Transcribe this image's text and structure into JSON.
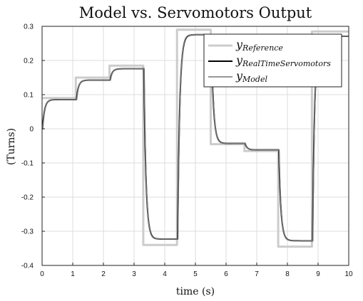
{
  "chart_data": {
    "type": "line",
    "title": "Model vs. Servomotors Output",
    "xlabel": "time (s)",
    "ylabel": "(Turns)",
    "xlim": [
      0,
      10
    ],
    "ylim": [
      -0.4,
      0.3
    ],
    "xticks": [
      0,
      1,
      2,
      3,
      4,
      5,
      6,
      7,
      8,
      9,
      10
    ],
    "yticks": [
      -0.4,
      -0.3,
      -0.2,
      -0.1,
      0,
      0.1,
      0.2,
      0.3
    ],
    "grid": true,
    "legend_position": "top-right",
    "series": [
      {
        "name": "y_Reference",
        "legend_main": "y",
        "legend_sub": "Reference",
        "color": "#cccccc",
        "kind": "step",
        "points": [
          [
            0,
            0.09
          ],
          [
            1.1,
            0.15
          ],
          [
            2.2,
            0.185
          ],
          [
            3.3,
            -0.34
          ],
          [
            4.4,
            0.29
          ],
          [
            5.5,
            -0.045
          ],
          [
            6.6,
            -0.065
          ],
          [
            7.7,
            -0.345
          ],
          [
            8.8,
            0.285
          ],
          [
            10,
            0.285
          ]
        ]
      },
      {
        "name": "y_RealTimeServomotors",
        "legend_main": "y",
        "legend_sub": "RealTimeServomotors",
        "color": "#000000",
        "kind": "response",
        "gain": 0.95,
        "tau": 0.07,
        "delay": 0.02,
        "steps": [
          [
            0,
            0.09
          ],
          [
            1.1,
            0.15
          ],
          [
            2.2,
            0.185
          ],
          [
            3.3,
            -0.34
          ],
          [
            4.4,
            0.29
          ],
          [
            5.5,
            -0.045
          ],
          [
            6.6,
            -0.065
          ],
          [
            7.7,
            -0.345
          ],
          [
            8.8,
            0.285
          ]
        ]
      },
      {
        "name": "y_Model",
        "legend_main": "y",
        "legend_sub": "Model",
        "color": "#777777",
        "kind": "response",
        "gain": 0.95,
        "tau": 0.065,
        "delay": 0.03,
        "steps": [
          [
            0,
            0.09
          ],
          [
            1.1,
            0.15
          ],
          [
            2.2,
            0.185
          ],
          [
            3.3,
            -0.34
          ],
          [
            4.4,
            0.29
          ],
          [
            5.5,
            -0.045
          ],
          [
            6.6,
            -0.065
          ],
          [
            7.7,
            -0.345
          ],
          [
            8.8,
            0.285
          ]
        ]
      }
    ]
  }
}
